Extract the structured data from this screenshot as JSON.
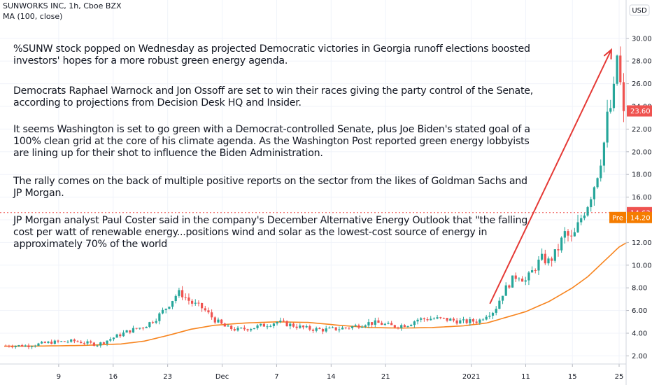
{
  "header": {
    "title": "SUNWORKS INC, 1h, Cboe BZX",
    "indicator": "MA (100, close)",
    "currency": "USD"
  },
  "notes": [
    "%SUNW stock popped on Wednesday as projected Democratic victories in Georgia runoff elections boosted investors' hopes for a more robust green energy agenda.",
    "Democrats Raphael Warnock and Jon Ossoff are set to win their races giving the party control of the Senate, according to projections from Decision Desk HQ and Insider.",
    "It seems Washington is set to go green with a Democrat-controlled Senate, plus Joe Biden's stated goal of a 100% clean grid at the core of his climate agenda. As the Washington Post reported green energy lobbyists are lining up for their shot to influence the Biden Administration.",
    "The rally comes on the back of multiple positive reports on the sector from the likes of Goldman Sachs and JP Morgan.",
    "JP Morgan analyst Paul Coster said in the company's December Alternative Energy Outlook that \"the falling cost per watt of renewable energy...positions wind and solar as the lowest-cost source of energy in approximately 70% of the world"
  ],
  "colors": {
    "up": "#26a69a",
    "down": "#ef5350",
    "ma": "#f7841e",
    "arrow": "#e53935",
    "last_price": "#ef5350",
    "premarket": "#f57c00"
  },
  "chart_data": {
    "type": "candlestick",
    "y_range": [
      1.0,
      31.0
    ],
    "y_ticks": [
      "2.00",
      "4.00",
      "6.00",
      "8.00",
      "10.00",
      "12.00",
      "14.00",
      "16.00",
      "18.00",
      "20.00",
      "22.00",
      "24.00",
      "26.00",
      "28.00",
      "30.00"
    ],
    "x_range": [
      0,
      79
    ],
    "x_ticks": [
      {
        "pos": 7,
        "label": "9"
      },
      {
        "pos": 14,
        "label": "16"
      },
      {
        "pos": 21,
        "label": "23"
      },
      {
        "pos": 28,
        "label": "Dec"
      },
      {
        "pos": 35,
        "label": "7"
      },
      {
        "pos": 42,
        "label": "14"
      },
      {
        "pos": 49,
        "label": "21"
      },
      {
        "pos": 60,
        "label": "2021"
      },
      {
        "pos": 67,
        "label": "11"
      },
      {
        "pos": 73,
        "label": "15"
      },
      {
        "pos": 79,
        "label": "25"
      }
    ],
    "price_keypoints": [
      [
        0,
        2.9
      ],
      [
        3,
        2.9
      ],
      [
        6,
        3.2
      ],
      [
        9,
        3.3
      ],
      [
        12,
        3.0
      ],
      [
        14,
        3.6
      ],
      [
        16,
        4.2
      ],
      [
        18,
        4.6
      ],
      [
        19.5,
        5.3
      ],
      [
        21,
        6.4
      ],
      [
        22,
        7.3
      ],
      [
        22.6,
        7.6
      ],
      [
        24,
        6.7
      ],
      [
        25.5,
        6.2
      ],
      [
        27,
        5.2
      ],
      [
        28.5,
        4.5
      ],
      [
        30,
        4.3
      ],
      [
        32,
        4.5
      ],
      [
        34,
        4.8
      ],
      [
        35,
        5.0
      ],
      [
        37,
        4.7
      ],
      [
        39,
        4.4
      ],
      [
        41,
        4.3
      ],
      [
        43,
        4.4
      ],
      [
        45,
        4.6
      ],
      [
        46.5,
        4.9
      ],
      [
        48,
        4.9
      ],
      [
        50,
        4.6
      ],
      [
        52,
        4.8
      ],
      [
        53,
        5.2
      ],
      [
        55,
        5.3
      ],
      [
        57,
        5.2
      ],
      [
        59,
        5.0
      ],
      [
        61,
        5.1
      ],
      [
        62,
        5.7
      ],
      [
        63,
        6.0
      ],
      [
        64,
        7.5
      ],
      [
        65,
        8.5
      ],
      [
        66,
        9.2
      ],
      [
        67,
        8.6
      ],
      [
        68,
        9.6
      ],
      [
        69,
        10.6
      ],
      [
        70,
        10.3
      ],
      [
        71,
        11.2
      ],
      [
        72,
        12.8
      ],
      [
        73,
        12.2
      ],
      [
        74,
        14.0
      ],
      [
        75,
        15.5
      ],
      [
        76,
        17.5
      ],
      [
        77,
        20.5
      ],
      [
        77.6,
        23.5
      ],
      [
        78.2,
        24.2
      ],
      [
        78.8,
        29.0
      ],
      [
        79.2,
        25.5
      ],
      [
        79.6,
        23.6
      ]
    ],
    "ma_keypoints": [
      [
        0,
        2.85
      ],
      [
        5,
        2.87
      ],
      [
        10,
        2.92
      ],
      [
        15,
        3.05
      ],
      [
        18,
        3.3
      ],
      [
        21,
        3.8
      ],
      [
        24,
        4.35
      ],
      [
        27,
        4.7
      ],
      [
        31,
        4.9
      ],
      [
        35,
        5.0
      ],
      [
        39,
        4.95
      ],
      [
        43,
        4.7
      ],
      [
        47,
        4.5
      ],
      [
        51,
        4.45
      ],
      [
        55,
        4.5
      ],
      [
        59,
        4.65
      ],
      [
        62,
        4.9
      ],
      [
        64,
        5.3
      ],
      [
        67,
        5.9
      ],
      [
        70,
        6.8
      ],
      [
        73,
        8.0
      ],
      [
        75,
        9.0
      ],
      [
        77,
        10.3
      ],
      [
        79,
        11.6
      ],
      [
        80,
        12.0
      ]
    ],
    "last_price": {
      "value": 23.6,
      "label": "23.60"
    },
    "prev_level": {
      "value": 14.63,
      "label": "14.63"
    },
    "premarket": {
      "value": 14.2,
      "label": "14.20",
      "tag": "Pre"
    },
    "arrow": {
      "from": [
        62.4,
        6.6
      ],
      "to": [
        78.0,
        29.0
      ]
    }
  }
}
